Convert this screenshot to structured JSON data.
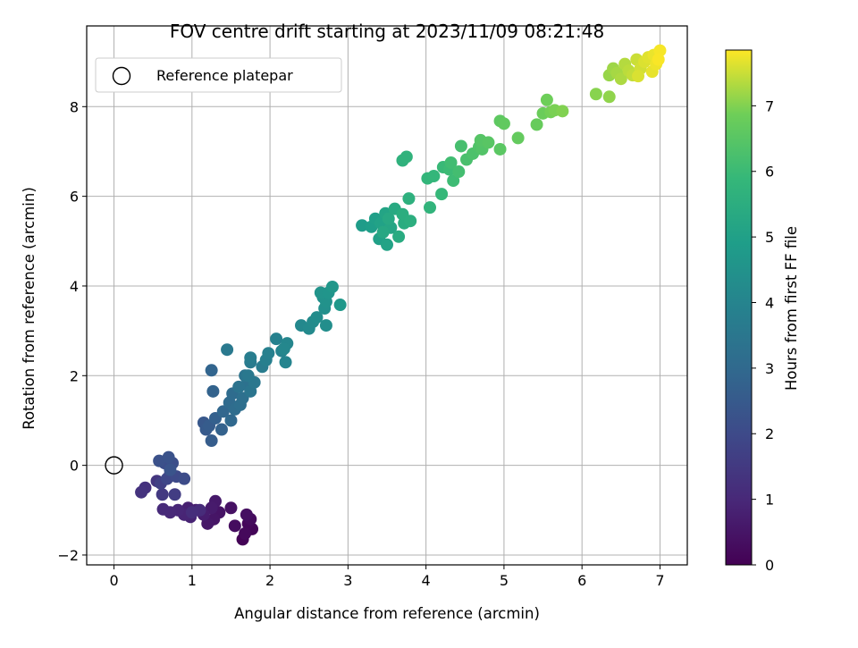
{
  "chart_data": {
    "type": "scatter",
    "title": "FOV centre drift starting at 2023/11/09 08:21:48",
    "xlabel": "Angular distance from reference (arcmin)",
    "ylabel": "Rotation from reference (arcmin)",
    "xlim": [
      -0.35,
      7.35
    ],
    "ylim": [
      -2.22,
      9.8
    ],
    "xticks": [
      0,
      1,
      2,
      3,
      4,
      5,
      6,
      7
    ],
    "yticks": [
      -2,
      0,
      2,
      4,
      6,
      8
    ],
    "grid": true,
    "legend": {
      "placement": "top-left",
      "entries": [
        "Reference platepar"
      ]
    },
    "reference_point": {
      "name": "Reference platepar",
      "x": 0,
      "y": 0
    },
    "colorbar": {
      "label": "Hours from first FF file",
      "range": [
        0,
        7.85
      ],
      "ticks": [
        0,
        1,
        2,
        3,
        4,
        5,
        6,
        7
      ],
      "colormap": "viridis"
    },
    "series": [
      {
        "points": [
          {
            "x": 1.65,
            "y": -1.65,
            "t": 0.05
          },
          {
            "x": 1.77,
            "y": -1.42,
            "t": 0.1
          },
          {
            "x": 1.72,
            "y": -1.3,
            "t": 0.15
          },
          {
            "x": 1.68,
            "y": -1.52,
            "t": 0.2
          },
          {
            "x": 1.75,
            "y": -1.2,
            "t": 0.25
          },
          {
            "x": 1.55,
            "y": -1.35,
            "t": 0.3
          },
          {
            "x": 1.7,
            "y": -1.1,
            "t": 0.35
          },
          {
            "x": 1.5,
            "y": -0.95,
            "t": 0.4
          },
          {
            "x": 1.35,
            "y": -1.05,
            "t": 0.45
          },
          {
            "x": 1.28,
            "y": -1.2,
            "t": 0.5
          },
          {
            "x": 1.2,
            "y": -1.3,
            "t": 0.55
          },
          {
            "x": 1.3,
            "y": -0.8,
            "t": 0.6
          },
          {
            "x": 1.25,
            "y": -0.95,
            "t": 0.65
          },
          {
            "x": 1.15,
            "y": -1.1,
            "t": 0.7
          },
          {
            "x": 1.05,
            "y": -1.0,
            "t": 0.75
          },
          {
            "x": 0.95,
            "y": -0.95,
            "t": 0.8
          },
          {
            "x": 0.98,
            "y": -1.15,
            "t": 0.85
          },
          {
            "x": 0.9,
            "y": -1.1,
            "t": 0.9
          },
          {
            "x": 0.82,
            "y": -1.0,
            "t": 0.95
          },
          {
            "x": 0.72,
            "y": -1.05,
            "t": 1.0
          },
          {
            "x": 0.63,
            "y": -0.98,
            "t": 1.05
          },
          {
            "x": 1.1,
            "y": -1.0,
            "t": 1.1
          },
          {
            "x": 1.0,
            "y": -1.05,
            "t": 1.15
          },
          {
            "x": 0.4,
            "y": -0.5,
            "t": 1.25
          },
          {
            "x": 0.35,
            "y": -0.6,
            "t": 1.3
          },
          {
            "x": 0.55,
            "y": -0.35,
            "t": 1.4
          },
          {
            "x": 0.62,
            "y": -0.65,
            "t": 1.5
          },
          {
            "x": 0.78,
            "y": -0.65,
            "t": 1.6
          },
          {
            "x": 0.6,
            "y": -0.4,
            "t": 1.7
          },
          {
            "x": 0.72,
            "y": -0.2,
            "t": 1.8
          },
          {
            "x": 0.68,
            "y": -0.3,
            "t": 1.9
          },
          {
            "x": 0.8,
            "y": -0.25,
            "t": 2.0
          },
          {
            "x": 0.9,
            "y": -0.3,
            "t": 2.05
          },
          {
            "x": 0.65,
            "y": 0.05,
            "t": 2.1
          },
          {
            "x": 0.75,
            "y": 0.05,
            "t": 2.15
          },
          {
            "x": 0.58,
            "y": 0.1,
            "t": 2.2
          },
          {
            "x": 0.7,
            "y": 0.18,
            "t": 2.25
          },
          {
            "x": 0.72,
            "y": -0.1,
            "t": 2.3
          },
          {
            "x": 1.15,
            "y": 0.95,
            "t": 2.45
          },
          {
            "x": 1.18,
            "y": 0.8,
            "t": 2.5
          },
          {
            "x": 1.22,
            "y": 0.88,
            "t": 2.55
          },
          {
            "x": 1.25,
            "y": 0.55,
            "t": 2.6
          },
          {
            "x": 1.3,
            "y": 1.05,
            "t": 2.7
          },
          {
            "x": 1.38,
            "y": 0.8,
            "t": 2.75
          },
          {
            "x": 1.27,
            "y": 1.65,
            "t": 2.8
          },
          {
            "x": 1.25,
            "y": 2.12,
            "t": 2.85
          },
          {
            "x": 1.4,
            "y": 1.2,
            "t": 2.9
          },
          {
            "x": 1.5,
            "y": 1.0,
            "t": 3.0
          },
          {
            "x": 1.48,
            "y": 1.4,
            "t": 3.05
          },
          {
            "x": 1.52,
            "y": 1.6,
            "t": 3.1
          },
          {
            "x": 1.55,
            "y": 1.25,
            "t": 3.15
          },
          {
            "x": 1.62,
            "y": 1.35,
            "t": 3.2
          },
          {
            "x": 1.65,
            "y": 1.5,
            "t": 3.25
          },
          {
            "x": 1.7,
            "y": 1.8,
            "t": 3.3
          },
          {
            "x": 1.6,
            "y": 1.75,
            "t": 3.35
          },
          {
            "x": 1.68,
            "y": 2.0,
            "t": 3.4
          },
          {
            "x": 1.75,
            "y": 1.65,
            "t": 3.45
          },
          {
            "x": 1.8,
            "y": 1.85,
            "t": 3.5
          },
          {
            "x": 1.72,
            "y": 2.0,
            "t": 3.55
          },
          {
            "x": 1.45,
            "y": 2.58,
            "t": 3.6
          },
          {
            "x": 1.75,
            "y": 2.3,
            "t": 3.65
          },
          {
            "x": 1.9,
            "y": 2.2,
            "t": 3.7
          },
          {
            "x": 1.75,
            "y": 2.4,
            "t": 3.75
          },
          {
            "x": 1.95,
            "y": 2.35,
            "t": 3.8
          },
          {
            "x": 1.98,
            "y": 2.5,
            "t": 3.85
          },
          {
            "x": 2.08,
            "y": 2.82,
            "t": 3.9
          },
          {
            "x": 2.15,
            "y": 2.55,
            "t": 3.95
          },
          {
            "x": 2.2,
            "y": 2.3,
            "t": 4.0
          },
          {
            "x": 2.22,
            "y": 2.72,
            "t": 4.05
          },
          {
            "x": 2.18,
            "y": 2.6,
            "t": 4.1
          },
          {
            "x": 2.4,
            "y": 3.12,
            "t": 4.15
          },
          {
            "x": 2.5,
            "y": 3.05,
            "t": 4.2
          },
          {
            "x": 2.55,
            "y": 3.2,
            "t": 4.25
          },
          {
            "x": 2.6,
            "y": 3.3,
            "t": 4.3
          },
          {
            "x": 2.72,
            "y": 3.12,
            "t": 4.35
          },
          {
            "x": 2.7,
            "y": 3.5,
            "t": 4.4
          },
          {
            "x": 2.68,
            "y": 3.75,
            "t": 4.45
          },
          {
            "x": 2.72,
            "y": 3.65,
            "t": 4.5
          },
          {
            "x": 2.65,
            "y": 3.85,
            "t": 4.55
          },
          {
            "x": 2.75,
            "y": 3.85,
            "t": 4.6
          },
          {
            "x": 2.8,
            "y": 3.98,
            "t": 4.65
          },
          {
            "x": 2.9,
            "y": 3.58,
            "t": 4.7
          },
          {
            "x": 3.18,
            "y": 5.35,
            "t": 4.85
          },
          {
            "x": 3.3,
            "y": 5.32,
            "t": 4.9
          },
          {
            "x": 3.35,
            "y": 5.5,
            "t": 4.95
          },
          {
            "x": 3.4,
            "y": 5.05,
            "t": 5.0
          },
          {
            "x": 3.42,
            "y": 5.4,
            "t": 5.05
          },
          {
            "x": 3.5,
            "y": 4.92,
            "t": 5.1
          },
          {
            "x": 3.48,
            "y": 5.62,
            "t": 5.15
          },
          {
            "x": 3.55,
            "y": 5.3,
            "t": 5.2
          },
          {
            "x": 3.45,
            "y": 5.2,
            "t": 5.25
          },
          {
            "x": 3.52,
            "y": 5.5,
            "t": 5.3
          },
          {
            "x": 3.6,
            "y": 5.72,
            "t": 5.35
          },
          {
            "x": 3.65,
            "y": 5.1,
            "t": 5.4
          },
          {
            "x": 3.72,
            "y": 5.4,
            "t": 5.45
          },
          {
            "x": 3.7,
            "y": 5.6,
            "t": 5.5
          },
          {
            "x": 3.8,
            "y": 5.45,
            "t": 5.55
          },
          {
            "x": 3.78,
            "y": 5.95,
            "t": 5.6
          },
          {
            "x": 3.7,
            "y": 6.8,
            "t": 5.65
          },
          {
            "x": 3.75,
            "y": 6.88,
            "t": 5.7
          },
          {
            "x": 4.05,
            "y": 5.75,
            "t": 5.75
          },
          {
            "x": 4.02,
            "y": 6.4,
            "t": 5.8
          },
          {
            "x": 4.1,
            "y": 6.45,
            "t": 5.85
          },
          {
            "x": 4.2,
            "y": 6.05,
            "t": 5.9
          },
          {
            "x": 4.22,
            "y": 6.65,
            "t": 5.95
          },
          {
            "x": 4.3,
            "y": 6.6,
            "t": 6.0
          },
          {
            "x": 4.35,
            "y": 6.35,
            "t": 6.05
          },
          {
            "x": 4.32,
            "y": 6.75,
            "t": 6.1
          },
          {
            "x": 4.42,
            "y": 6.55,
            "t": 6.15
          },
          {
            "x": 4.45,
            "y": 7.12,
            "t": 6.2
          },
          {
            "x": 4.52,
            "y": 6.82,
            "t": 6.25
          },
          {
            "x": 4.6,
            "y": 6.95,
            "t": 6.3
          },
          {
            "x": 4.68,
            "y": 7.1,
            "t": 6.35
          },
          {
            "x": 4.72,
            "y": 7.05,
            "t": 6.4
          },
          {
            "x": 4.7,
            "y": 7.25,
            "t": 6.45
          },
          {
            "x": 4.8,
            "y": 7.2,
            "t": 6.5
          },
          {
            "x": 4.95,
            "y": 7.05,
            "t": 6.55
          },
          {
            "x": 4.95,
            "y": 7.68,
            "t": 6.6
          },
          {
            "x": 5.0,
            "y": 7.62,
            "t": 6.65
          },
          {
            "x": 5.18,
            "y": 7.3,
            "t": 6.7
          },
          {
            "x": 5.42,
            "y": 7.6,
            "t": 6.75
          },
          {
            "x": 5.5,
            "y": 7.85,
            "t": 6.8
          },
          {
            "x": 5.55,
            "y": 8.15,
            "t": 6.85
          },
          {
            "x": 5.6,
            "y": 7.88,
            "t": 6.9
          },
          {
            "x": 5.65,
            "y": 7.92,
            "t": 6.95
          },
          {
            "x": 5.75,
            "y": 7.9,
            "t": 7.0
          },
          {
            "x": 6.18,
            "y": 8.28,
            "t": 7.05
          },
          {
            "x": 6.35,
            "y": 8.22,
            "t": 7.1
          },
          {
            "x": 6.35,
            "y": 8.7,
            "t": 7.15
          },
          {
            "x": 6.4,
            "y": 8.85,
            "t": 7.2
          },
          {
            "x": 6.45,
            "y": 8.75,
            "t": 7.25
          },
          {
            "x": 6.5,
            "y": 8.62,
            "t": 7.3
          },
          {
            "x": 6.55,
            "y": 8.95,
            "t": 7.35
          },
          {
            "x": 6.6,
            "y": 8.8,
            "t": 7.4
          },
          {
            "x": 6.65,
            "y": 8.7,
            "t": 7.45
          },
          {
            "x": 6.7,
            "y": 9.05,
            "t": 7.5
          },
          {
            "x": 6.75,
            "y": 8.85,
            "t": 7.55
          },
          {
            "x": 6.72,
            "y": 8.68,
            "t": 7.6
          },
          {
            "x": 6.8,
            "y": 9.0,
            "t": 7.62
          },
          {
            "x": 6.85,
            "y": 9.1,
            "t": 7.65
          },
          {
            "x": 6.9,
            "y": 8.78,
            "t": 7.7
          },
          {
            "x": 6.92,
            "y": 9.15,
            "t": 7.72
          },
          {
            "x": 6.95,
            "y": 8.95,
            "t": 7.75
          },
          {
            "x": 7.0,
            "y": 9.25,
            "t": 7.8
          },
          {
            "x": 6.98,
            "y": 9.05,
            "t": 7.82
          }
        ]
      }
    ]
  }
}
